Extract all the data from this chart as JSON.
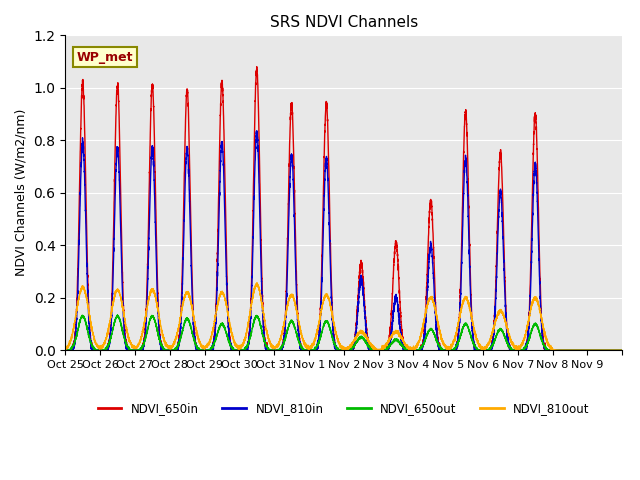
{
  "title": "SRS NDVI Channels",
  "ylabel": "NDVI Channels (W/m2/nm)",
  "xlabel": "",
  "ylim": [
    0.0,
    1.2
  ],
  "yticks": [
    0.0,
    0.2,
    0.4,
    0.6,
    0.8,
    1.0,
    1.2
  ],
  "xtick_labels": [
    "Oct 25",
    "Oct 26",
    "Oct 27",
    "Oct 28",
    "Oct 29",
    "Oct 30",
    "Oct 31",
    "Nov 1",
    "Nov 2",
    "Nov 3",
    "Nov 4",
    "Nov 5",
    "Nov 6",
    "Nov 7",
    "Nov 8",
    "Nov 9"
  ],
  "bg_color": "#e8e8e8",
  "label_box_text": "WP_met",
  "legend_entries": [
    "NDVI_650in",
    "NDVI_810in",
    "NDVI_650out",
    "NDVI_810out"
  ],
  "line_colors": [
    "#dd0000",
    "#0000cc",
    "#00bb00",
    "#ffaa00"
  ],
  "peaks_650in": [
    1.02,
    1.01,
    1.01,
    0.99,
    1.02,
    1.07,
    0.94,
    0.94,
    0.33,
    0.41,
    0.57,
    0.91,
    0.75,
    0.9,
    0.0,
    0.0
  ],
  "peaks_810in": [
    0.79,
    0.77,
    0.77,
    0.77,
    0.79,
    0.83,
    0.74,
    0.73,
    0.27,
    0.2,
    0.4,
    0.73,
    0.6,
    0.71,
    0.0,
    0.0
  ],
  "peaks_650out": [
    0.13,
    0.13,
    0.13,
    0.12,
    0.1,
    0.13,
    0.11,
    0.11,
    0.05,
    0.04,
    0.08,
    0.1,
    0.08,
    0.1,
    0.0,
    0.0
  ],
  "peaks_810out": [
    0.24,
    0.23,
    0.23,
    0.22,
    0.22,
    0.25,
    0.21,
    0.21,
    0.07,
    0.07,
    0.2,
    0.2,
    0.15,
    0.2,
    0.0,
    0.0
  ],
  "hw_in": 0.09,
  "hw_out": 0.18,
  "n_days": 16,
  "pts_per_day": 500
}
